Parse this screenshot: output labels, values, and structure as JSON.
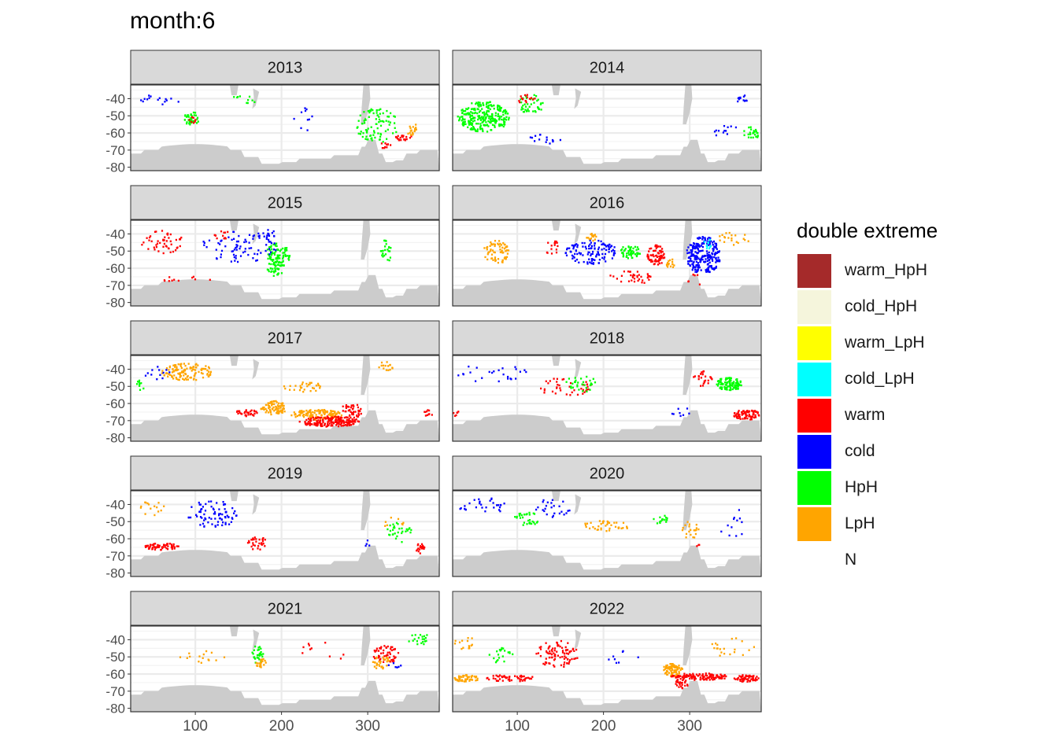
{
  "title": "month:6",
  "legend": {
    "title": "double extreme",
    "items": [
      {
        "label": "warm_HpH",
        "color": "#A52A2A"
      },
      {
        "label": "cold_HpH",
        "color": "#F5F5DC"
      },
      {
        "label": "warm_LpH",
        "color": "#FFFF00"
      },
      {
        "label": "cold_LpH",
        "color": "#00FFFF"
      },
      {
        "label": "warm",
        "color": "#FF0000"
      },
      {
        "label": "cold",
        "color": "#0000FF"
      },
      {
        "label": "HpH",
        "color": "#00FF00"
      },
      {
        "label": "LpH",
        "color": "#FFA500"
      },
      {
        "label": "N",
        "color": ""
      }
    ]
  },
  "colors": {
    "land": "#CCCCCC",
    "strip": "#D9D9D9",
    "grid": "#EBEBEB",
    "border": "#333333"
  },
  "chart_data": {
    "type": "heatmap",
    "facet_by": "year",
    "xlim": [
      25,
      383
    ],
    "ylim": [
      -82,
      -32
    ],
    "x_ticks": [
      100,
      200,
      300
    ],
    "x_tick_labels": [
      "100",
      "200",
      "300"
    ],
    "y_ticks": [
      -40,
      -50,
      -60,
      -70,
      -80
    ],
    "y_tick_labels": [
      "-40",
      "-50",
      "-60",
      "-70",
      "-80"
    ],
    "xlabel": "",
    "ylabel": "",
    "grid": true,
    "legend_position": "right",
    "panels": [
      {
        "year": "2013",
        "clusters": [
          {
            "cat": "HpH",
            "x": 95,
            "y": -51,
            "rx": 9,
            "ry": 4,
            "n": 40
          },
          {
            "cat": "warm",
            "x": 96,
            "y": -52,
            "rx": 4,
            "ry": 2,
            "n": 8
          },
          {
            "cat": "HpH",
            "x": 310,
            "y": -55,
            "rx": 25,
            "ry": 10,
            "n": 90
          },
          {
            "cat": "warm",
            "x": 340,
            "y": -62,
            "rx": 10,
            "ry": 2,
            "n": 20
          },
          {
            "cat": "LpH",
            "x": 350,
            "y": -57,
            "rx": 6,
            "ry": 4,
            "n": 18
          },
          {
            "cat": "warm",
            "x": 320,
            "y": -67,
            "rx": 6,
            "ry": 3,
            "n": 10
          },
          {
            "cat": "cold",
            "x": 225,
            "y": -52,
            "rx": 12,
            "ry": 8,
            "n": 10
          },
          {
            "cat": "cold",
            "x": 60,
            "y": -40,
            "rx": 25,
            "ry": 3,
            "n": 15
          },
          {
            "cat": "HpH",
            "x": 155,
            "y": -40,
            "rx": 15,
            "ry": 3,
            "n": 10
          }
        ]
      },
      {
        "year": "2014",
        "clusters": [
          {
            "cat": "HpH",
            "x": 60,
            "y": -50,
            "rx": 30,
            "ry": 9,
            "n": 260
          },
          {
            "cat": "HpH",
            "x": 115,
            "y": -43,
            "rx": 15,
            "ry": 6,
            "n": 40
          },
          {
            "cat": "warm",
            "x": 110,
            "y": -40,
            "rx": 10,
            "ry": 3,
            "n": 15
          },
          {
            "cat": "cold",
            "x": 130,
            "y": -63,
            "rx": 20,
            "ry": 3,
            "n": 15
          },
          {
            "cat": "cold",
            "x": 360,
            "y": -40,
            "rx": 6,
            "ry": 3,
            "n": 12
          },
          {
            "cat": "HpH",
            "x": 370,
            "y": -60,
            "rx": 10,
            "ry": 4,
            "n": 25
          },
          {
            "cat": "cold",
            "x": 340,
            "y": -58,
            "rx": 15,
            "ry": 4,
            "n": 12
          }
        ]
      },
      {
        "year": "2015",
        "clusters": [
          {
            "cat": "warm",
            "x": 60,
            "y": -44,
            "rx": 25,
            "ry": 7,
            "n": 50
          },
          {
            "cat": "HpH",
            "x": 195,
            "y": -52,
            "rx": 15,
            "ry": 7,
            "n": 100
          },
          {
            "cat": "HpH",
            "x": 190,
            "y": -62,
            "rx": 10,
            "ry": 3,
            "n": 25
          },
          {
            "cat": "cold",
            "x": 150,
            "y": -47,
            "rx": 45,
            "ry": 9,
            "n": 80
          },
          {
            "cat": "cold",
            "x": 185,
            "y": -40,
            "rx": 8,
            "ry": 3,
            "n": 15
          },
          {
            "cat": "HpH",
            "x": 320,
            "y": -50,
            "rx": 6,
            "ry": 8,
            "n": 25
          },
          {
            "cat": "warm",
            "x": 90,
            "y": -66,
            "rx": 30,
            "ry": 2,
            "n": 15
          },
          {
            "cat": "warm",
            "x": 130,
            "y": -40,
            "rx": 10,
            "ry": 3,
            "n": 12
          }
        ]
      },
      {
        "year": "2016",
        "clusters": [
          {
            "cat": "LpH",
            "x": 75,
            "y": -50,
            "rx": 15,
            "ry": 7,
            "n": 70
          },
          {
            "cat": "cold",
            "x": 185,
            "y": -50,
            "rx": 30,
            "ry": 7,
            "n": 120
          },
          {
            "cat": "HpH",
            "x": 230,
            "y": -50,
            "rx": 12,
            "ry": 4,
            "n": 50
          },
          {
            "cat": "warm",
            "x": 260,
            "y": -52,
            "rx": 10,
            "ry": 6,
            "n": 70
          },
          {
            "cat": "cold",
            "x": 315,
            "y": -52,
            "rx": 20,
            "ry": 11,
            "n": 230
          },
          {
            "cat": "cold_LpH",
            "x": 320,
            "y": -46,
            "rx": 5,
            "ry": 4,
            "n": 12
          },
          {
            "cat": "LpH",
            "x": 280,
            "y": -57,
            "rx": 8,
            "ry": 3,
            "n": 15
          },
          {
            "cat": "LpH",
            "x": 350,
            "y": -42,
            "rx": 20,
            "ry": 4,
            "n": 20
          },
          {
            "cat": "warm",
            "x": 230,
            "y": -65,
            "rx": 25,
            "ry": 4,
            "n": 35
          },
          {
            "cat": "warm",
            "x": 305,
            "y": -67,
            "rx": 8,
            "ry": 4,
            "n": 20
          },
          {
            "cat": "warm",
            "x": 140,
            "y": -48,
            "rx": 8,
            "ry": 5,
            "n": 15
          },
          {
            "cat": "LpH",
            "x": 185,
            "y": -42,
            "rx": 6,
            "ry": 3,
            "n": 15
          }
        ]
      },
      {
        "year": "2017",
        "clusters": [
          {
            "cat": "LpH",
            "x": 90,
            "y": -41,
            "rx": 30,
            "ry": 5,
            "n": 120
          },
          {
            "cat": "LpH",
            "x": 190,
            "y": -62,
            "rx": 15,
            "ry": 4,
            "n": 80
          },
          {
            "cat": "LpH",
            "x": 240,
            "y": -66,
            "rx": 30,
            "ry": 3,
            "n": 120
          },
          {
            "cat": "warm",
            "x": 255,
            "y": -70,
            "rx": 35,
            "ry": 3,
            "n": 180
          },
          {
            "cat": "warm",
            "x": 280,
            "y": -64,
            "rx": 12,
            "ry": 5,
            "n": 50
          },
          {
            "cat": "warm",
            "x": 160,
            "y": -65,
            "rx": 15,
            "ry": 2,
            "n": 30
          },
          {
            "cat": "LpH",
            "x": 225,
            "y": -50,
            "rx": 25,
            "ry": 3,
            "n": 30
          },
          {
            "cat": "cold",
            "x": 55,
            "y": -42,
            "rx": 15,
            "ry": 4,
            "n": 12
          },
          {
            "cat": "HpH",
            "x": 35,
            "y": -49,
            "rx": 5,
            "ry": 3,
            "n": 10
          },
          {
            "cat": "LpH",
            "x": 320,
            "y": -38,
            "rx": 10,
            "ry": 3,
            "n": 15
          },
          {
            "cat": "warm",
            "x": 370,
            "y": -65,
            "rx": 6,
            "ry": 2,
            "n": 10
          }
        ]
      },
      {
        "year": "2018",
        "clusters": [
          {
            "cat": "HpH",
            "x": 345,
            "y": -48,
            "rx": 15,
            "ry": 4,
            "n": 100
          },
          {
            "cat": "warm",
            "x": 365,
            "y": -66,
            "rx": 15,
            "ry": 3,
            "n": 80
          },
          {
            "cat": "warm",
            "x": 155,
            "y": -50,
            "rx": 30,
            "ry": 6,
            "n": 40
          },
          {
            "cat": "HpH",
            "x": 175,
            "y": -48,
            "rx": 20,
            "ry": 5,
            "n": 30
          },
          {
            "cat": "cold",
            "x": 70,
            "y": -42,
            "rx": 40,
            "ry": 6,
            "n": 25
          },
          {
            "cat": "warm",
            "x": 315,
            "y": -45,
            "rx": 12,
            "ry": 5,
            "n": 25
          },
          {
            "cat": "cold",
            "x": 290,
            "y": -64,
            "rx": 15,
            "ry": 3,
            "n": 8
          },
          {
            "cat": "warm",
            "x": 28,
            "y": -65,
            "rx": 3,
            "ry": 2,
            "n": 6
          }
        ]
      },
      {
        "year": "2019",
        "clusters": [
          {
            "cat": "warm",
            "x": 60,
            "y": -64,
            "rx": 20,
            "ry": 2,
            "n": 60
          },
          {
            "cat": "cold",
            "x": 120,
            "y": -45,
            "rx": 30,
            "ry": 8,
            "n": 80
          },
          {
            "cat": "warm",
            "x": 170,
            "y": -62,
            "rx": 12,
            "ry": 4,
            "n": 30
          },
          {
            "cat": "HpH",
            "x": 335,
            "y": -56,
            "rx": 15,
            "ry": 6,
            "n": 30
          },
          {
            "cat": "warm",
            "x": 360,
            "y": -65,
            "rx": 5,
            "ry": 3,
            "n": 20
          },
          {
            "cat": "LpH",
            "x": 50,
            "y": -42,
            "rx": 15,
            "ry": 5,
            "n": 15
          },
          {
            "cat": "cold",
            "x": 300,
            "y": -62,
            "rx": 5,
            "ry": 3,
            "n": 6
          },
          {
            "cat": "LpH",
            "x": 330,
            "y": -50,
            "rx": 15,
            "ry": 4,
            "n": 8
          }
        ]
      },
      {
        "year": "2020",
        "clusters": [
          {
            "cat": "cold",
            "x": 60,
            "y": -40,
            "rx": 30,
            "ry": 5,
            "n": 30
          },
          {
            "cat": "HpH",
            "x": 110,
            "y": -48,
            "rx": 15,
            "ry": 4,
            "n": 30
          },
          {
            "cat": "LpH",
            "x": 200,
            "y": -52,
            "rx": 30,
            "ry": 3,
            "n": 40
          },
          {
            "cat": "cold",
            "x": 140,
            "y": -42,
            "rx": 20,
            "ry": 6,
            "n": 25
          },
          {
            "cat": "HpH",
            "x": 265,
            "y": -48,
            "rx": 10,
            "ry": 3,
            "n": 15
          },
          {
            "cat": "LpH",
            "x": 300,
            "y": -55,
            "rx": 10,
            "ry": 6,
            "n": 20
          },
          {
            "cat": "warm",
            "x": 305,
            "y": -64,
            "rx": 6,
            "ry": 2,
            "n": 8
          },
          {
            "cat": "cold",
            "x": 350,
            "y": -50,
            "rx": 20,
            "ry": 8,
            "n": 12
          }
        ]
      },
      {
        "year": "2021",
        "clusters": [
          {
            "cat": "HpH",
            "x": 170,
            "y": -48,
            "rx": 8,
            "ry": 5,
            "n": 30
          },
          {
            "cat": "LpH",
            "x": 175,
            "y": -53,
            "rx": 6,
            "ry": 3,
            "n": 20
          },
          {
            "cat": "warm",
            "x": 320,
            "y": -48,
            "rx": 15,
            "ry": 5,
            "n": 50
          },
          {
            "cat": "LpH",
            "x": 315,
            "y": -53,
            "rx": 10,
            "ry": 4,
            "n": 30
          },
          {
            "cat": "HpH",
            "x": 360,
            "y": -40,
            "rx": 15,
            "ry": 4,
            "n": 20
          },
          {
            "cat": "LpH",
            "x": 110,
            "y": -50,
            "rx": 30,
            "ry": 4,
            "n": 15
          },
          {
            "cat": "warm",
            "x": 250,
            "y": -46,
            "rx": 40,
            "ry": 5,
            "n": 10
          },
          {
            "cat": "cold",
            "x": 330,
            "y": -55,
            "rx": 8,
            "ry": 3,
            "n": 6
          }
        ]
      },
      {
        "year": "2022",
        "clusters": [
          {
            "cat": "LpH",
            "x": 40,
            "y": -62,
            "rx": 15,
            "ry": 2,
            "n": 50
          },
          {
            "cat": "warm",
            "x": 90,
            "y": -62,
            "rx": 30,
            "ry": 2,
            "n": 50
          },
          {
            "cat": "warm",
            "x": 145,
            "y": -48,
            "rx": 25,
            "ry": 8,
            "n": 90
          },
          {
            "cat": "HpH",
            "x": 80,
            "y": -48,
            "rx": 15,
            "ry": 5,
            "n": 20
          },
          {
            "cat": "LpH",
            "x": 280,
            "y": -57,
            "rx": 12,
            "ry": 4,
            "n": 80
          },
          {
            "cat": "warm",
            "x": 310,
            "y": -61,
            "rx": 35,
            "ry": 2,
            "n": 120
          },
          {
            "cat": "warm",
            "x": 365,
            "y": -62,
            "rx": 15,
            "ry": 2,
            "n": 60
          },
          {
            "cat": "LpH",
            "x": 40,
            "y": -42,
            "rx": 15,
            "ry": 4,
            "n": 15
          },
          {
            "cat": "warm",
            "x": 290,
            "y": -65,
            "rx": 8,
            "ry": 3,
            "n": 25
          },
          {
            "cat": "LpH",
            "x": 350,
            "y": -44,
            "rx": 30,
            "ry": 6,
            "n": 20
          },
          {
            "cat": "cold",
            "x": 220,
            "y": -50,
            "rx": 20,
            "ry": 4,
            "n": 8
          }
        ]
      }
    ]
  }
}
